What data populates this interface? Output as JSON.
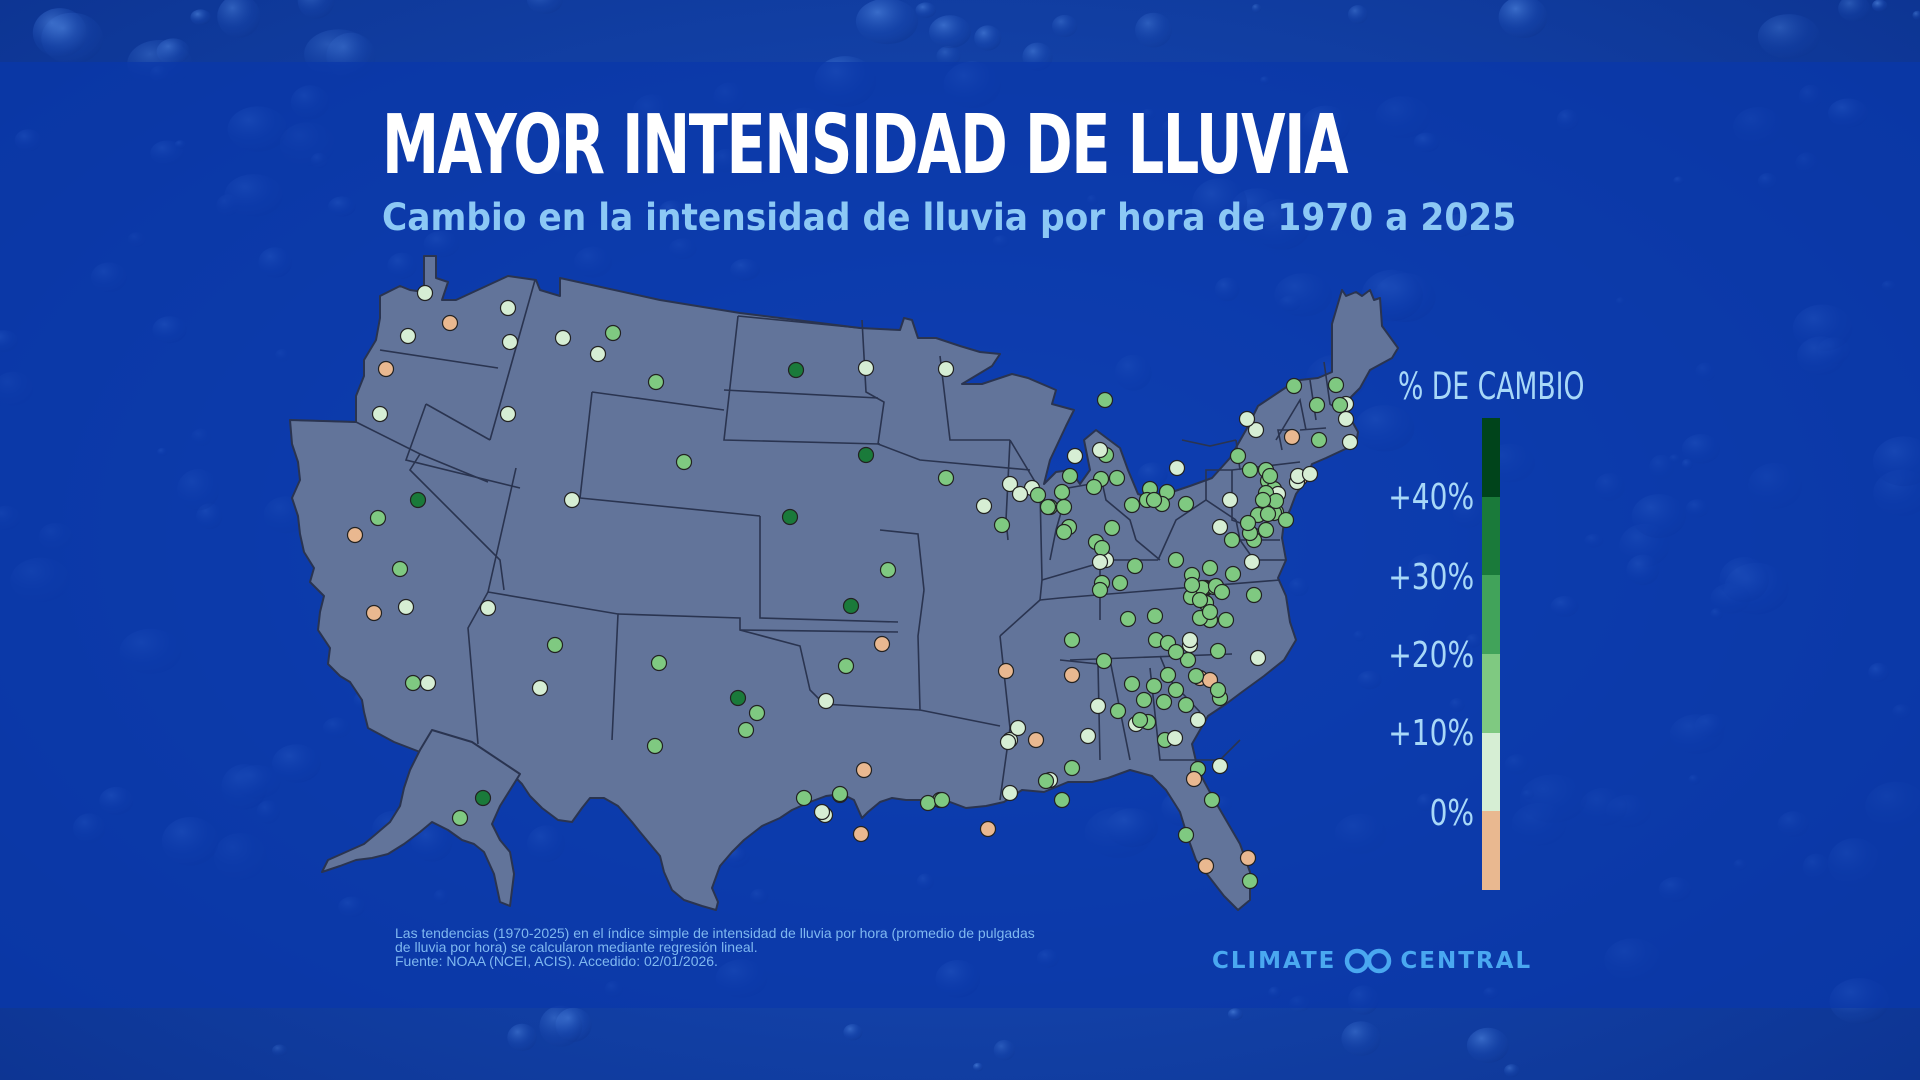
{
  "title": "MAYOR INTENSIDAD DE LLUVIA",
  "subtitle": "Cambio en la intensidad de lluvia por hora de 1970 a 2025",
  "legend": {
    "title": "% DE CAMBIO",
    "labels": [
      "+40%",
      "+30%",
      "+20%",
      "+10%",
      "0%"
    ],
    "colors": [
      "#00441b",
      "#1a7a3a",
      "#41a35a",
      "#7fc981",
      "#d6eed4",
      "#e9b890"
    ]
  },
  "footnote": {
    "line1": "Las tendencias (1970-2025) en el índice simple de intensidad de lluvia por hora (promedio de pulgadas",
    "line2": "de lluvia por hora) se calcularon mediante regresión lineal.",
    "source": "Fuente: NOAA (NCEI, ACIS). Accedido: 02/01/2026."
  },
  "logo": {
    "left": "CLIMATE",
    "right": "CENTRAL"
  },
  "map": {
    "region": "Estados Unidos",
    "fill": "#62749a",
    "stroke": "#2a3450"
  }
}
